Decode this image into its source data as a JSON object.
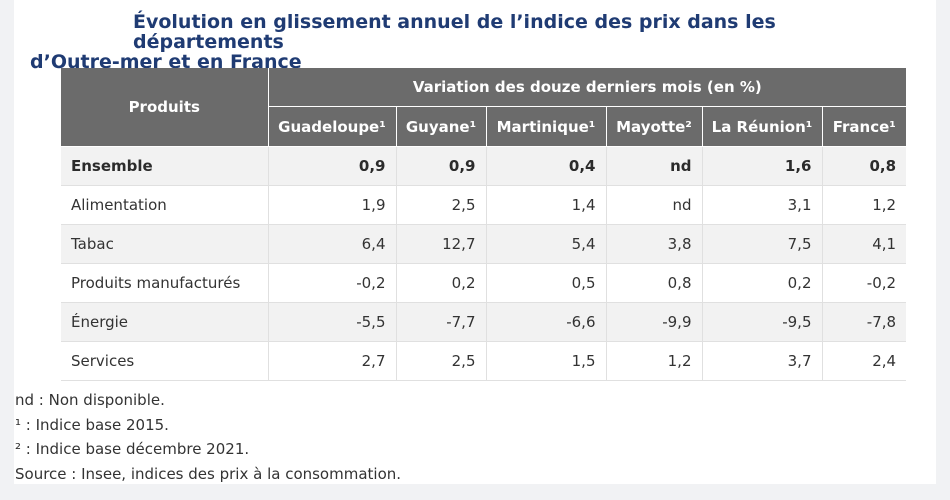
{
  "title": {
    "line1": "Évolution en glissement annuel de l’indice des prix dans les départements",
    "line2": "d’Outre-mer et en France"
  },
  "table": {
    "row_header": "Produits",
    "group_header": "Variation des douze derniers mois (en %)",
    "columns": [
      "Guadeloupe¹",
      "Guyane¹",
      "Martinique¹",
      "Mayotte²",
      "La Réunion¹",
      "France¹"
    ],
    "rows": [
      {
        "label": "Ensemble",
        "values": [
          "0,9",
          "0,9",
          "0,4",
          "nd",
          "1,6",
          "0,8"
        ]
      },
      {
        "label": "Alimentation",
        "values": [
          "1,9",
          "2,5",
          "1,4",
          "nd",
          "3,1",
          "1,2"
        ]
      },
      {
        "label": "Tabac",
        "values": [
          "6,4",
          "12,7",
          "5,4",
          "3,8",
          "7,5",
          "4,1"
        ]
      },
      {
        "label": "Produits manufacturés",
        "values": [
          "-0,2",
          "0,2",
          "0,5",
          "0,8",
          "0,2",
          "-0,2"
        ]
      },
      {
        "label": "Énergie",
        "values": [
          "-5,5",
          "-7,7",
          "-6,6",
          "-9,9",
          "-9,5",
          "-7,8"
        ]
      },
      {
        "label": "Services",
        "values": [
          "2,7",
          "2,5",
          "1,5",
          "1,2",
          "3,7",
          "2,4"
        ]
      }
    ]
  },
  "notes": [
    "nd : Non disponible.",
    "¹ : Indice base 2015.",
    "² : Indice base décembre 2021.",
    "Source : Insee, indices des prix à la consommation."
  ]
}
